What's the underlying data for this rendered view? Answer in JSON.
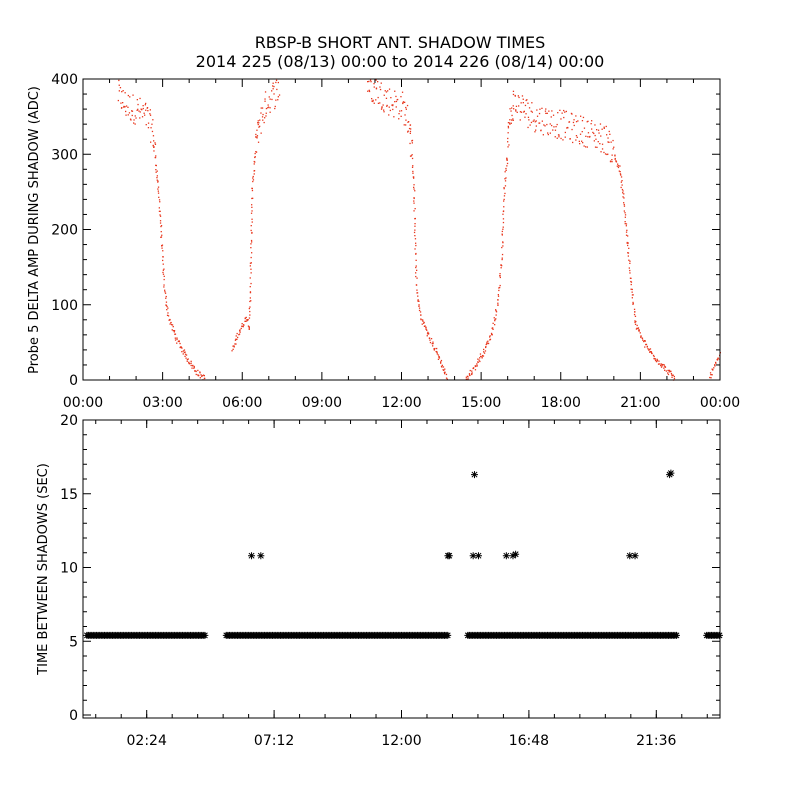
{
  "title_line1": "RBSP-B SHORT ANT. SHADOW TIMES",
  "title_line2": "2014 225 (08/13) 00:00 to 2014 226 (08/14) 00:00",
  "colors": {
    "top_points": "#e8361c",
    "bottom_points": "#000000",
    "axes": "#000000",
    "background": "#ffffff"
  },
  "chart_data": [
    {
      "type": "scatter",
      "ylabel": "Probe 5 DELTA AMP DURING SHADOW (ADC)",
      "xlabel": "",
      "x_unit": "hours since 2014-08-13 00:00",
      "xlim": [
        0,
        24
      ],
      "ylim": [
        0,
        400
      ],
      "x_ticks": [
        "00:00",
        "03:00",
        "06:00",
        "09:00",
        "12:00",
        "15:00",
        "18:00",
        "21:00",
        "00:00"
      ],
      "y_ticks": [
        "0",
        "100",
        "200",
        "300",
        "400"
      ],
      "marker": "dot",
      "color": "#e8361c",
      "segments": [
        {
          "x": [
            1.3,
            1.6,
            2.0,
            2.4,
            2.6,
            2.7,
            2.85,
            2.95,
            3.05,
            3.2,
            3.5,
            3.9,
            4.3,
            4.6
          ],
          "y": [
            380,
            365,
            360,
            350,
            330,
            300,
            240,
            180,
            120,
            85,
            55,
            30,
            10,
            2
          ]
        },
        {
          "x": [
            5.6,
            5.8,
            6.0,
            6.15,
            6.25,
            6.3,
            6.35,
            6.45,
            6.6,
            6.9,
            7.4
          ],
          "y": [
            40,
            60,
            75,
            85,
            70,
            150,
            250,
            300,
            340,
            370,
            390
          ]
        },
        {
          "x": [
            10.7,
            11.2,
            11.6,
            12.0,
            12.3,
            12.45,
            12.55,
            12.7,
            13.0,
            13.4,
            13.7
          ],
          "y": [
            395,
            380,
            370,
            365,
            340,
            250,
            120,
            85,
            60,
            30,
            2
          ]
        },
        {
          "x": [
            14.4,
            14.7,
            15.1,
            15.4,
            15.6,
            15.75,
            15.85,
            16.0,
            16.2,
            17.0,
            18.0,
            19.0,
            19.7,
            20.0,
            20.2,
            20.35,
            20.45,
            20.6,
            20.8,
            21.2,
            21.8,
            22.3
          ],
          "y": [
            2,
            15,
            40,
            65,
            100,
            160,
            250,
            330,
            370,
            350,
            340,
            330,
            320,
            300,
            280,
            240,
            200,
            140,
            75,
            45,
            20,
            2
          ]
        },
        {
          "x": [
            23.6,
            23.8,
            24.0
          ],
          "y": [
            5,
            20,
            35
          ]
        }
      ]
    },
    {
      "type": "scatter",
      "ylabel": "TIME BETWEEN SHADOWS (SEC)",
      "xlabel": "",
      "x_unit": "hours since 2014-08-13 00:00",
      "xlim": [
        0,
        24
      ],
      "ylim": [
        0,
        20
      ],
      "x_ticks": [
        "02:24",
        "07:12",
        "12:00",
        "16:48",
        "21:36"
      ],
      "y_ticks": [
        "0",
        "5",
        "10",
        "15",
        "20"
      ],
      "marker": "asterisk",
      "color": "#000000",
      "baseline_value": 5.4,
      "baseline_ranges": [
        [
          0.15,
          4.6
        ],
        [
          5.4,
          13.8
        ],
        [
          14.5,
          22.4
        ],
        [
          23.5,
          24.0
        ]
      ],
      "outliers": {
        "x": [
          6.35,
          6.7,
          13.75,
          13.8,
          14.75,
          14.7,
          14.9,
          15.95,
          16.2,
          16.3,
          20.6,
          20.8,
          22.1,
          22.15
        ],
        "y": [
          10.8,
          10.8,
          10.8,
          10.8,
          16.3,
          10.8,
          10.8,
          10.8,
          10.8,
          10.9,
          10.8,
          10.8,
          16.3,
          16.4
        ]
      }
    }
  ]
}
